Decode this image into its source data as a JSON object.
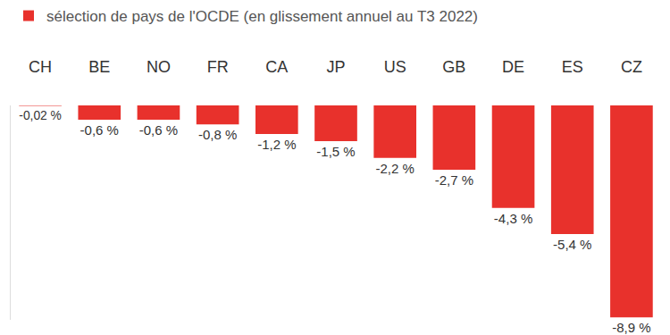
{
  "chart_data": {
    "type": "bar",
    "categories": [
      "CH",
      "BE",
      "NO",
      "FR",
      "CA",
      "JP",
      "US",
      "GB",
      "DE",
      "ES",
      "CZ"
    ],
    "series": [
      {
        "name": "sélection de pays de l'OCDE (en glissement annuel au T3 2022)",
        "color": "#e8312c",
        "values": [
          -0.02,
          -0.6,
          -0.6,
          -0.8,
          -1.2,
          -1.5,
          -2.2,
          -2.7,
          -4.3,
          -5.4,
          -8.9
        ],
        "value_labels": [
          "-0,02 %",
          "-0,6 %",
          "-0,6 %",
          "-0,8 %",
          "-1,2 %",
          "-1,5 %",
          "-2,2 %",
          "-2,7 %",
          "-4,3 %",
          "-5,4 %",
          "-8,9 %"
        ]
      }
    ],
    "ylim": [
      -9,
      0
    ],
    "yticks": [],
    "grid": false,
    "legend": "top left",
    "data_labels": true,
    "tick_labels": "x"
  }
}
